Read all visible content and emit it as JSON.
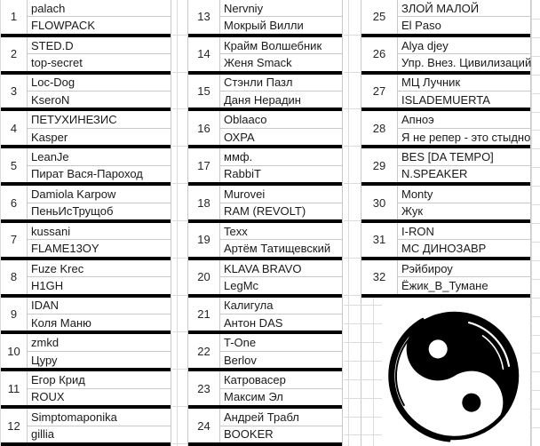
{
  "app": {
    "kind": "spreadsheet-bracket-list",
    "title": "Battle pairs list"
  },
  "colors": {
    "background": "#ffffff",
    "text": "#1a1a1a",
    "number_text": "#262626",
    "thick_border": "#000000",
    "grid_line": "#c9c9c9",
    "faint_grid_line": "#dcdcdc",
    "icon_black": "#000000",
    "icon_white": "#ffffff"
  },
  "icons": {
    "yin_yang": "yin-yang-icon"
  },
  "table": {
    "columns": [
      {
        "entries": [
          {
            "num": "1",
            "line1": "palach",
            "line2": "FLOWPACK"
          },
          {
            "num": "2",
            "line1": "STED.D",
            "line2": "top-secret"
          },
          {
            "num": "3",
            "line1": "Loc-Dog",
            "line2": "KseroN"
          },
          {
            "num": "4",
            "line1": "ПЕТУХИНЕЗИС",
            "line2": "Kasper"
          },
          {
            "num": "5",
            "line1": "LeanJe",
            "line2": "Пират Вася-Пароход"
          },
          {
            "num": "6",
            "line1": "Damiola Karpow",
            "line2": "ПеньИсТрущоб"
          },
          {
            "num": "7",
            "line1": "kussani",
            "line2": "FLAME13OY"
          },
          {
            "num": "8",
            "line1": "Fuze Krec",
            "line2": "H1GH"
          },
          {
            "num": "9",
            "line1": "IDAN",
            "line2": "Коля Маню"
          },
          {
            "num": "10",
            "line1": "zmkd",
            "line2": "Цуру"
          },
          {
            "num": "11",
            "line1": "Егор Крид",
            "line2": "ROUX"
          },
          {
            "num": "12",
            "line1": "Simptomaponika",
            "line2": "gillia"
          }
        ]
      },
      {
        "entries": [
          {
            "num": "13",
            "line1": "Nervniy",
            "line2": "Мокрый Вилли"
          },
          {
            "num": "14",
            "line1": "Крайм Волшебник",
            "line2": "Женя Smack"
          },
          {
            "num": "15",
            "line1": "Стэнли Пазл",
            "line2": "Даня Нерадин"
          },
          {
            "num": "16",
            "line1": "Oblaaco",
            "line2": "ОХРА"
          },
          {
            "num": "17",
            "line1": "ммф.",
            "line2": "RabbiT"
          },
          {
            "num": "18",
            "line1": "Murovei",
            "line2": "RAM (REVOLT)"
          },
          {
            "num": "19",
            "line1": "Texx",
            "line2": "Артём Татищевский"
          },
          {
            "num": "20",
            "line1": "KLAVA BRAVO",
            "line2": "LegMc"
          },
          {
            "num": "21",
            "line1": "Калигула",
            "line2": "Антон DAS"
          },
          {
            "num": "22",
            "line1": "T-One",
            "line2": "Berlov"
          },
          {
            "num": "23",
            "line1": "Катровасер",
            "line2": "Максим Эл"
          },
          {
            "num": "24",
            "line1": "Андрей Трабл",
            "line2": "BOOKER"
          }
        ]
      },
      {
        "entries": [
          {
            "num": "25",
            "line1": "ЗЛОЙ МАЛОЙ",
            "line2": "El Paso"
          },
          {
            "num": "26",
            "line1": "Alya djey",
            "line2": "Упр. Внез. Цивилизаций"
          },
          {
            "num": "27",
            "line1": "МЦ Лучник",
            "line2": "ISLADEMUERTA"
          },
          {
            "num": "28",
            "line1": "Апноэ",
            "line2": "Я не репер - это стыдно"
          },
          {
            "num": "29",
            "line1": "BES [DA TEMPO]",
            "line2": "N.SPEAKER"
          },
          {
            "num": "30",
            "line1": "Monty",
            "line2": "Жук"
          },
          {
            "num": "31",
            "line1": "I-RON",
            "line2": "МС ДИНОЗАВР"
          },
          {
            "num": "32",
            "line1": "Рэйбироу",
            "line2": "Ёжик_В_Тумане"
          }
        ]
      }
    ]
  }
}
